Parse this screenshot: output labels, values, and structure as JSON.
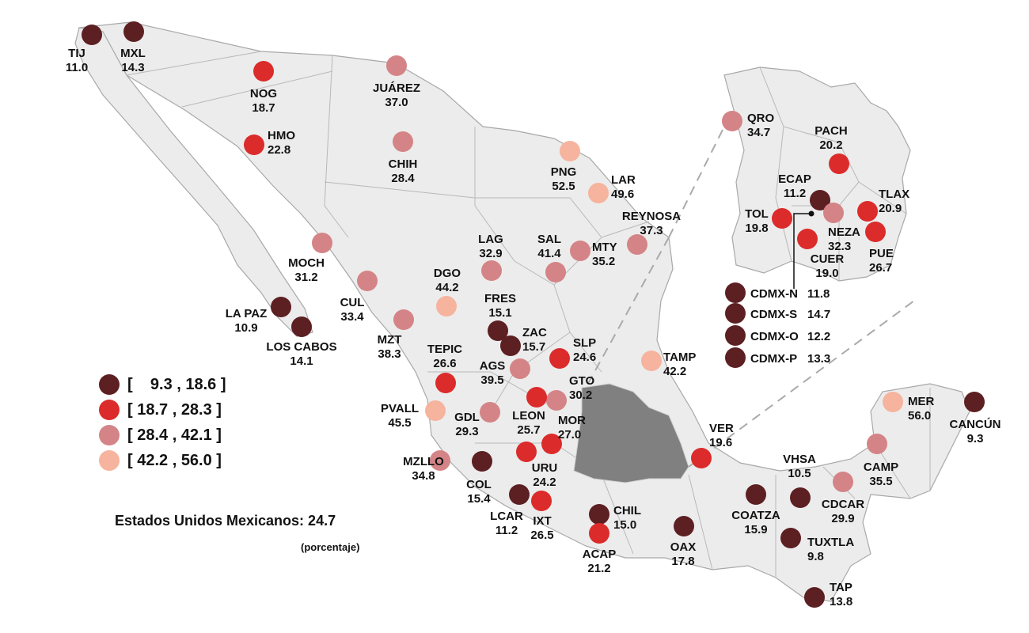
{
  "colors": {
    "land": "#ececec",
    "border": "#a8a8a8",
    "highlight": "#808080",
    "classes": [
      "#5c1f22",
      "#dc2b2b",
      "#d48486",
      "#f6b39e"
    ]
  },
  "legend": [
    {
      "label": "[    9.3 , 18.6 ]",
      "class": 0
    },
    {
      "label": "[ 18.7 , 28.3 ]",
      "class": 1
    },
    {
      "label": "[ 28.4 , 42.1 ]",
      "class": 2
    },
    {
      "label": "[ 42.2 , 56.0 ]",
      "class": 3
    }
  ],
  "total": "Estados Unidos Mexicanos: 24.7",
  "unit": "(porcentaje)",
  "cities": [
    {
      "name": "TIJ",
      "value": "11.0",
      "class": 0
    },
    {
      "name": "MXL",
      "value": "14.3",
      "class": 0
    },
    {
      "name": "NOG",
      "value": "18.7",
      "class": 1
    },
    {
      "name": "JUÁREZ",
      "value": "37.0",
      "class": 2
    },
    {
      "name": "HMO",
      "value": "22.8",
      "class": 1
    },
    {
      "name": "CHIH",
      "value": "28.4",
      "class": 2
    },
    {
      "name": "PNG",
      "value": "52.5",
      "class": 3
    },
    {
      "name": "LAR",
      "value": "49.6",
      "class": 3
    },
    {
      "name": "REYNOSA",
      "value": "37.3",
      "class": 2
    },
    {
      "name": "LAG",
      "value": "32.9",
      "class": 2
    },
    {
      "name": "SAL",
      "value": "41.4",
      "class": 2
    },
    {
      "name": "MTY",
      "value": "35.2",
      "class": 2
    },
    {
      "name": "MOCH",
      "value": "31.2",
      "class": 2
    },
    {
      "name": "DGO",
      "value": "44.2",
      "class": 3
    },
    {
      "name": "CUL",
      "value": "33.4",
      "class": 2
    },
    {
      "name": "LA PAZ",
      "value": "10.9",
      "class": 0
    },
    {
      "name": "LOS CABOS",
      "value": "14.1",
      "class": 0
    },
    {
      "name": "FRES",
      "value": "15.1",
      "class": 0
    },
    {
      "name": "MZT",
      "value": "38.3",
      "class": 2
    },
    {
      "name": "ZAC",
      "value": "15.7",
      "class": 0
    },
    {
      "name": "TEPIC",
      "value": "26.6",
      "class": 1
    },
    {
      "name": "SLP",
      "value": "24.6",
      "class": 1
    },
    {
      "name": "AGS",
      "value": "39.5",
      "class": 2
    },
    {
      "name": "GTO",
      "value": "30.2",
      "class": 2
    },
    {
      "name": "TAMP",
      "value": "42.2",
      "class": 3
    },
    {
      "name": "PVALL",
      "value": "45.5",
      "class": 3
    },
    {
      "name": "GDL",
      "value": "29.3",
      "class": 2
    },
    {
      "name": "LEON",
      "value": "25.7",
      "class": 1
    },
    {
      "name": "MOR",
      "value": "27.0",
      "class": 1
    },
    {
      "name": "MZLLO",
      "value": "34.8",
      "class": 2
    },
    {
      "name": "COL",
      "value": "15.4",
      "class": 0
    },
    {
      "name": "URU",
      "value": "24.2",
      "class": 1
    },
    {
      "name": "LCAR",
      "value": "11.2",
      "class": 0
    },
    {
      "name": "IXT",
      "value": "26.5",
      "class": 1
    },
    {
      "name": "CHIL",
      "value": "15.0",
      "class": 0
    },
    {
      "name": "ACAP",
      "value": "21.2",
      "class": 1
    },
    {
      "name": "OAX",
      "value": "17.8",
      "class": 0
    },
    {
      "name": "VER",
      "value": "19.6",
      "class": 1
    },
    {
      "name": "COATZA",
      "value": "15.9",
      "class": 0
    },
    {
      "name": "VHSA",
      "value": "10.5",
      "class": 0
    },
    {
      "name": "CDCAR",
      "value": "29.9",
      "class": 2
    },
    {
      "name": "TUXTLA",
      "value": "9.8",
      "class": 0
    },
    {
      "name": "TAP",
      "value": "13.8",
      "class": 0
    },
    {
      "name": "CAMP",
      "value": "35.5",
      "class": 2
    },
    {
      "name": "MER",
      "value": "56.0",
      "class": 3
    },
    {
      "name": "CANCÚN",
      "value": "9.3",
      "class": 0
    },
    {
      "name": "QRO",
      "value": "34.7",
      "class": 2
    },
    {
      "name": "PACH",
      "value": "20.2",
      "class": 1
    },
    {
      "name": "ECAP",
      "value": "11.2",
      "class": 0
    },
    {
      "name": "TLAX",
      "value": "20.9",
      "class": 1
    },
    {
      "name": "TOL",
      "value": "19.8",
      "class": 1
    },
    {
      "name": "NEZA",
      "value": "32.3",
      "class": 2
    },
    {
      "name": "CUER",
      "value": "19.0",
      "class": 1
    },
    {
      "name": "PUE",
      "value": "26.7",
      "class": 1
    },
    {
      "name": "CDMX-N",
      "value": "11.8",
      "class": 0
    },
    {
      "name": "CDMX-S",
      "value": "14.7",
      "class": 0
    },
    {
      "name": "CDMX-O",
      "value": "12.2",
      "class": 0
    },
    {
      "name": "CDMX-P",
      "value": "13.3",
      "class": 0
    }
  ]
}
